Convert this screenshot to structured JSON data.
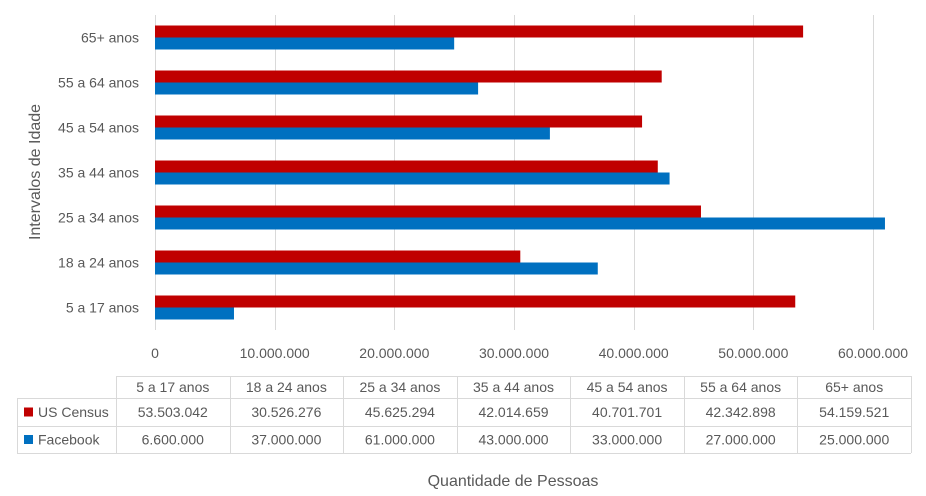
{
  "chart_data": {
    "type": "bar",
    "orientation": "horizontal",
    "categories": [
      "5 a 17 anos",
      "18 a 24 anos",
      "25 a 34 anos",
      "35 a 44 anos",
      "45 a 54 anos",
      "55 a 64 anos",
      "65+ anos"
    ],
    "series": [
      {
        "name": "US Census",
        "color": "#C00000",
        "values": [
          53503042,
          30526276,
          45625294,
          42014659,
          40701701,
          42342898,
          54159521
        ],
        "labels": [
          "53.503.042",
          "30.526.276",
          "45.625.294",
          "42.014.659",
          "40.701.701",
          "42.342.898",
          "54.159.521"
        ]
      },
      {
        "name": "Facebook",
        "color": "#0070C0",
        "values": [
          6600000,
          37000000,
          61000000,
          43000000,
          33000000,
          27000000,
          25000000
        ],
        "labels": [
          "6.600.000",
          "37.000.000",
          "61.000.000",
          "43.000.000",
          "33.000.000",
          "27.000.000",
          "25.000.000"
        ]
      }
    ],
    "xlim": [
      0,
      60000000
    ],
    "xticks": [
      0,
      10000000,
      20000000,
      30000000,
      40000000,
      50000000,
      60000000
    ],
    "xtick_labels": [
      "0",
      "10.000.000",
      "20.000.000",
      "30.000.000",
      "40.000.000",
      "50.000.000",
      "60.000.000"
    ],
    "xlabel": "Quantidade de Pessoas",
    "ylabel": "Intervalos de Idade",
    "grid": true,
    "legend": "data-table"
  }
}
